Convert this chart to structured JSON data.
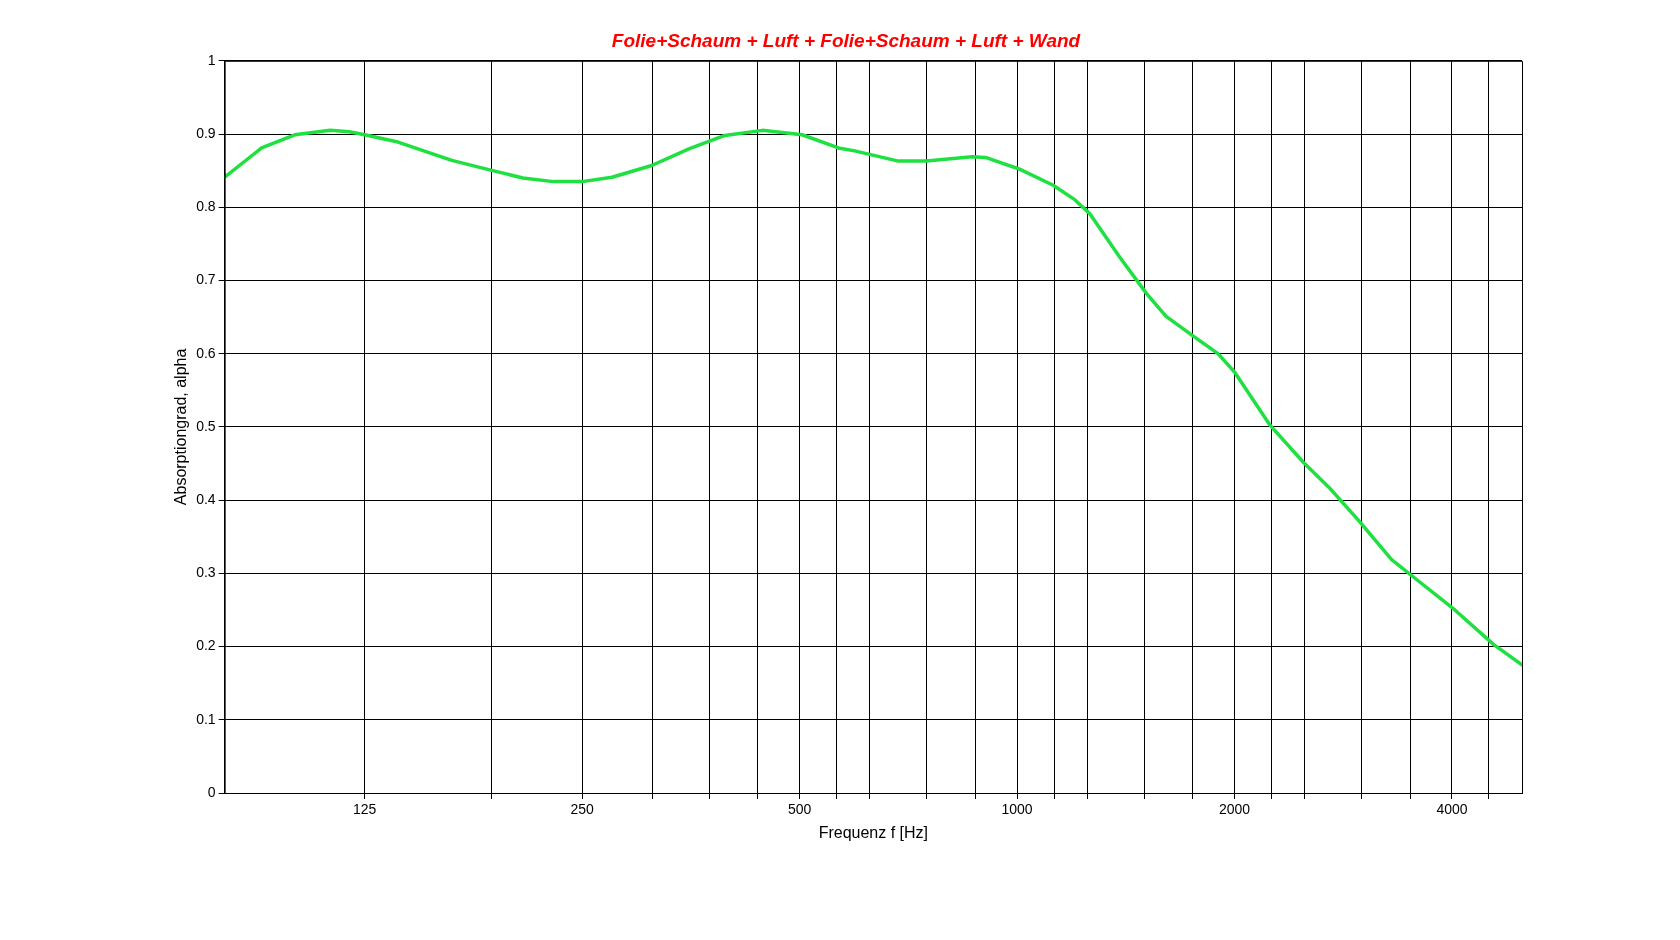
{
  "chart_data": {
    "type": "line",
    "title": "Folie+Schaum + Luft + Folie+Schaum + Luft + Wand",
    "xlabel": "Frequenz f [Hz]",
    "ylabel": "Absorptiongrad, alpha",
    "log": "x",
    "grid": true,
    "legend": false,
    "marker": "none",
    "line_style": "solid",
    "xlim": [
      80,
      5000
    ],
    "ylim": [
      0,
      1
    ],
    "xticks": [
      {
        "value": 125,
        "label": "125"
      },
      {
        "value": 187.5,
        "label": null
      },
      {
        "value": 250,
        "label": "250"
      },
      {
        "value": 312.5,
        "label": null
      },
      {
        "value": 375,
        "label": null
      },
      {
        "value": 437.5,
        "label": null
      },
      {
        "value": 500,
        "label": "500"
      },
      {
        "value": 562.5,
        "label": null
      },
      {
        "value": 625,
        "label": null
      },
      {
        "value": 750,
        "label": null
      },
      {
        "value": 875,
        "label": null
      },
      {
        "value": 1000,
        "label": "1000"
      },
      {
        "value": 1125,
        "label": null
      },
      {
        "value": 1250,
        "label": null
      },
      {
        "value": 1500,
        "label": null
      },
      {
        "value": 1750,
        "label": null
      },
      {
        "value": 2000,
        "label": "2000"
      },
      {
        "value": 2250,
        "label": null
      },
      {
        "value": 2500,
        "label": null
      },
      {
        "value": 3000,
        "label": null
      },
      {
        "value": 3500,
        "label": null
      },
      {
        "value": 4000,
        "label": "4000"
      },
      {
        "value": 4500,
        "label": null
      }
    ],
    "yticks": [
      0,
      0.1,
      0.2,
      0.3,
      0.4,
      0.5,
      0.6,
      0.7,
      0.8,
      0.9,
      1
    ],
    "x": [
      80,
      90,
      100,
      112,
      119,
      125,
      139,
      165,
      188,
      207,
      228,
      250,
      275,
      312,
      352,
      394,
      444,
      504,
      566,
      596,
      685,
      749,
      866,
      904,
      1008,
      1122,
      1203,
      1261,
      1389,
      1511,
      1608,
      1742,
      1897,
      2000,
      2241,
      2494,
      2705,
      2984,
      3297,
      3537,
      4037,
      4565,
      5000
    ],
    "series": [
      {
        "color": "#1ee040",
        "values": [
          0.841,
          0.881,
          0.899,
          0.905,
          0.903,
          0.899,
          0.889,
          0.864,
          0.85,
          0.84,
          0.835,
          0.835,
          0.841,
          0.857,
          0.88,
          0.898,
          0.905,
          0.899,
          0.881,
          0.877,
          0.863,
          0.863,
          0.869,
          0.868,
          0.852,
          0.83,
          0.81,
          0.791,
          0.731,
          0.682,
          0.651,
          0.626,
          0.6,
          0.575,
          0.502,
          0.451,
          0.417,
          0.37,
          0.319,
          0.295,
          0.25,
          0.203,
          0.175
        ]
      }
    ]
  }
}
